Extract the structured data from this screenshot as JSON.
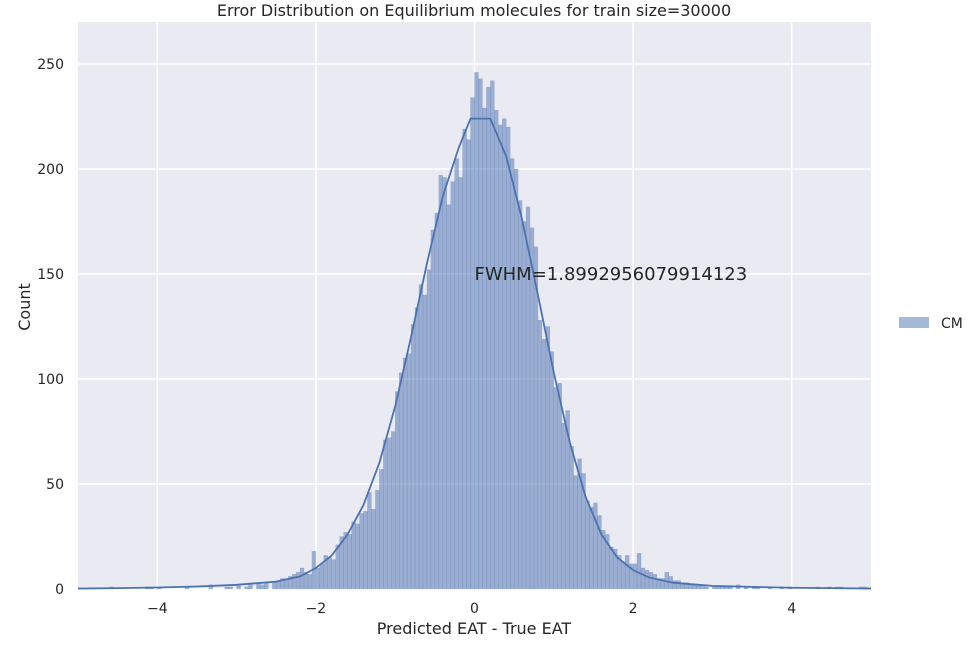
{
  "chart_data": {
    "type": "histogram",
    "title": "Error Distribution on Equilibrium molecules for train size=30000",
    "xlabel": "Predicted EAT - True EAT",
    "ylabel": "Count",
    "xlim": [
      -5,
      5
    ],
    "ylim": [
      0,
      270
    ],
    "xticks": [
      -4,
      -2,
      0,
      2,
      4
    ],
    "xtick_labels": [
      "−4",
      "−2",
      "0",
      "2",
      "4"
    ],
    "yticks": [
      0,
      50,
      100,
      150,
      200,
      250
    ],
    "ytick_labels": [
      "0",
      "50",
      "100",
      "150",
      "200",
      "250"
    ],
    "grid": true,
    "background": "#eaeaf2",
    "legend": {
      "placement": "right, outside plot",
      "entries": [
        "CM"
      ]
    },
    "annotation": {
      "text": "FWHM=1.8992956079914123",
      "x": 0.0,
      "y": 150
    },
    "series": [
      {
        "name": "CM",
        "bar_color": "#4c72b0",
        "bar_opacity": 0.5,
        "line_color": "#4c72b0",
        "bin_width": 0.05,
        "bins": [
          [
            -4.6,
            1
          ],
          [
            -4.15,
            1
          ],
          [
            -4.1,
            1
          ],
          [
            -4.0,
            1
          ],
          [
            -3.65,
            1
          ],
          [
            -3.35,
            2
          ],
          [
            -3.15,
            1
          ],
          [
            -3.1,
            1
          ],
          [
            -3.0,
            2
          ],
          [
            -2.9,
            1
          ],
          [
            -2.85,
            2
          ],
          [
            -2.75,
            3
          ],
          [
            -2.7,
            2
          ],
          [
            -2.65,
            3
          ],
          [
            -2.55,
            3
          ],
          [
            -2.5,
            4
          ],
          [
            -2.45,
            5
          ],
          [
            -2.4,
            5
          ],
          [
            -2.35,
            6
          ],
          [
            -2.3,
            7
          ],
          [
            -2.25,
            8
          ],
          [
            -2.2,
            10
          ],
          [
            -2.15,
            8
          ],
          [
            -2.1,
            7
          ],
          [
            -2.05,
            18
          ],
          [
            -2.0,
            10
          ],
          [
            -1.95,
            12
          ],
          [
            -1.9,
            16
          ],
          [
            -1.85,
            15
          ],
          [
            -1.8,
            14
          ],
          [
            -1.75,
            21
          ],
          [
            -1.7,
            25
          ],
          [
            -1.65,
            27
          ],
          [
            -1.6,
            26
          ],
          [
            -1.55,
            32
          ],
          [
            -1.5,
            31
          ],
          [
            -1.45,
            36
          ],
          [
            -1.4,
            37
          ],
          [
            -1.35,
            46
          ],
          [
            -1.3,
            38
          ],
          [
            -1.25,
            47
          ],
          [
            -1.2,
            57
          ],
          [
            -1.15,
            71
          ],
          [
            -1.1,
            72
          ],
          [
            -1.05,
            75
          ],
          [
            -1.0,
            94
          ],
          [
            -0.95,
            103
          ],
          [
            -0.9,
            110
          ],
          [
            -0.85,
            112
          ],
          [
            -0.8,
            126
          ],
          [
            -0.75,
            134
          ],
          [
            -0.7,
            145
          ],
          [
            -0.65,
            140
          ],
          [
            -0.6,
            152
          ],
          [
            -0.55,
            171
          ],
          [
            -0.5,
            179
          ],
          [
            -0.45,
            197
          ],
          [
            -0.4,
            196
          ],
          [
            -0.35,
            183
          ],
          [
            -0.3,
            194
          ],
          [
            -0.25,
            205
          ],
          [
            -0.2,
            196
          ],
          [
            -0.15,
            219
          ],
          [
            -0.1,
            214
          ],
          [
            -0.05,
            234
          ],
          [
            0.0,
            246
          ],
          [
            0.05,
            243
          ],
          [
            0.1,
            229
          ],
          [
            0.15,
            239
          ],
          [
            0.2,
            242
          ],
          [
            0.25,
            228
          ],
          [
            0.3,
            221
          ],
          [
            0.35,
            224
          ],
          [
            0.4,
            220
          ],
          [
            0.45,
            205
          ],
          [
            0.5,
            200
          ],
          [
            0.55,
            185
          ],
          [
            0.6,
            175
          ],
          [
            0.65,
            182
          ],
          [
            0.7,
            172
          ],
          [
            0.75,
            163
          ],
          [
            0.8,
            128
          ],
          [
            0.85,
            119
          ],
          [
            0.9,
            125
          ],
          [
            0.95,
            113
          ],
          [
            1.0,
            96
          ],
          [
            1.05,
            98
          ],
          [
            1.1,
            79
          ],
          [
            1.15,
            85
          ],
          [
            1.2,
            68
          ],
          [
            1.25,
            54
          ],
          [
            1.3,
            62
          ],
          [
            1.35,
            55
          ],
          [
            1.4,
            42
          ],
          [
            1.45,
            39
          ],
          [
            1.5,
            41
          ],
          [
            1.55,
            35
          ],
          [
            1.6,
            28
          ],
          [
            1.65,
            26
          ],
          [
            1.7,
            20
          ],
          [
            1.75,
            19
          ],
          [
            1.8,
            16
          ],
          [
            1.85,
            13
          ],
          [
            1.9,
            16
          ],
          [
            1.95,
            12
          ],
          [
            2.0,
            12
          ],
          [
            2.05,
            17
          ],
          [
            2.1,
            10
          ],
          [
            2.15,
            9
          ],
          [
            2.2,
            8
          ],
          [
            2.25,
            7
          ],
          [
            2.3,
            5
          ],
          [
            2.35,
            5
          ],
          [
            2.4,
            8
          ],
          [
            2.45,
            6
          ],
          [
            2.5,
            4
          ],
          [
            2.55,
            4
          ],
          [
            2.6,
            3
          ],
          [
            2.65,
            3
          ],
          [
            2.7,
            2
          ],
          [
            2.75,
            2
          ],
          [
            2.8,
            2
          ],
          [
            2.85,
            2
          ],
          [
            2.9,
            1
          ],
          [
            3.0,
            1
          ],
          [
            3.05,
            1
          ],
          [
            3.1,
            1
          ],
          [
            3.15,
            1
          ],
          [
            3.2,
            1
          ],
          [
            3.3,
            2
          ],
          [
            3.4,
            1
          ],
          [
            3.5,
            1
          ],
          [
            3.55,
            1
          ],
          [
            3.7,
            1
          ],
          [
            3.85,
            1
          ],
          [
            3.95,
            1
          ],
          [
            4.3,
            1
          ],
          [
            4.45,
            1
          ],
          [
            4.55,
            1
          ],
          [
            4.6,
            1
          ],
          [
            4.85,
            1
          ],
          [
            4.9,
            1
          ]
        ],
        "kde": [
          [
            -5.0,
            0.2
          ],
          [
            -4.5,
            0.4
          ],
          [
            -4.0,
            0.7
          ],
          [
            -3.5,
            1.2
          ],
          [
            -3.0,
            2.0
          ],
          [
            -2.5,
            3.5
          ],
          [
            -2.2,
            6.0
          ],
          [
            -2.0,
            10.0
          ],
          [
            -1.8,
            16.0
          ],
          [
            -1.6,
            26.0
          ],
          [
            -1.4,
            40.0
          ],
          [
            -1.2,
            60.0
          ],
          [
            -1.0,
            87.0
          ],
          [
            -0.8,
            120.0
          ],
          [
            -0.6,
            155.0
          ],
          [
            -0.4,
            187.0
          ],
          [
            -0.2,
            210.0
          ],
          [
            -0.05,
            224.0
          ],
          [
            0.2,
            224.0
          ],
          [
            0.4,
            206.0
          ],
          [
            0.6,
            176.0
          ],
          [
            0.8,
            140.0
          ],
          [
            1.0,
            103.0
          ],
          [
            1.2,
            70.0
          ],
          [
            1.4,
            44.0
          ],
          [
            1.6,
            26.0
          ],
          [
            1.8,
            15.0
          ],
          [
            2.0,
            9.0
          ],
          [
            2.2,
            5.5
          ],
          [
            2.5,
            3.0
          ],
          [
            3.0,
            1.5
          ],
          [
            3.5,
            1.0
          ],
          [
            4.0,
            0.6
          ],
          [
            4.5,
            0.4
          ],
          [
            5.0,
            0.2
          ]
        ]
      }
    ]
  }
}
